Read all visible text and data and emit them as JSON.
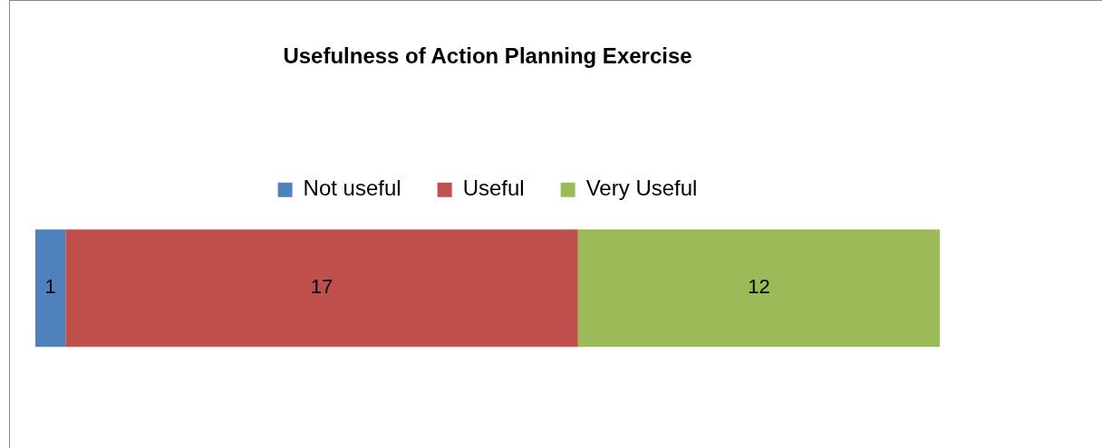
{
  "chart_data": {
    "type": "bar",
    "title": "Usefulness of Action Planning Exercise",
    "orientation": "horizontal",
    "stacked": true,
    "categories": [
      null
    ],
    "legend": "top",
    "data_labels": true,
    "series": [
      {
        "name": "Not useful",
        "color": "#4f81bd",
        "values": [
          1
        ]
      },
      {
        "name": "Useful",
        "color": "#c0504d",
        "values": [
          17
        ]
      },
      {
        "name": "Very Useful",
        "color": "#9bbb59",
        "values": [
          12
        ]
      }
    ]
  }
}
